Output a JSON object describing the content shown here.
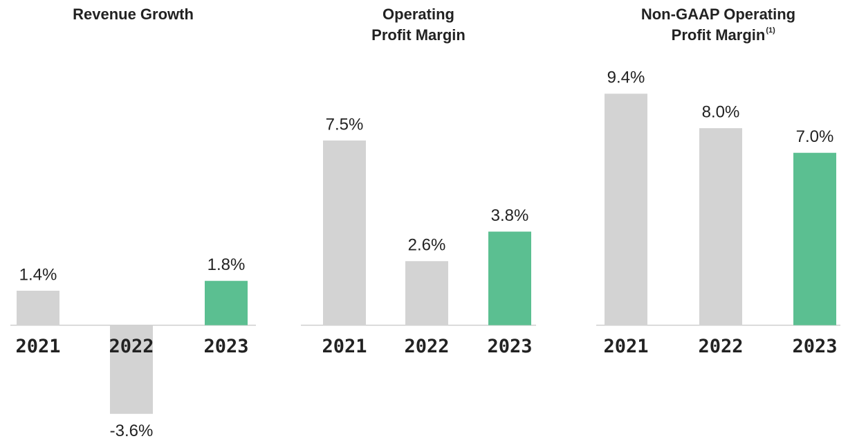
{
  "chart_data": [
    {
      "type": "bar",
      "title": [
        "Revenue Growth"
      ],
      "categories": [
        "2021",
        "2022",
        "2023"
      ],
      "values": [
        1.4,
        -3.6,
        1.8
      ],
      "value_labels": [
        "1.4%",
        "-3.6%",
        "1.8%"
      ],
      "colors": [
        "#d3d3d3",
        "#d3d3d3",
        "#5bbf91"
      ],
      "ylim": [
        -4,
        10
      ]
    },
    {
      "type": "bar",
      "title": [
        "Operating",
        "Profit Margin"
      ],
      "categories": [
        "2021",
        "2022",
        "2023"
      ],
      "values": [
        7.5,
        2.6,
        3.8
      ],
      "value_labels": [
        "7.5%",
        "2.6%",
        "3.8%"
      ],
      "colors": [
        "#d3d3d3",
        "#d3d3d3",
        "#5bbf91"
      ],
      "ylim": [
        -4,
        10
      ]
    },
    {
      "type": "bar",
      "title": [
        "Non-GAAP Operating",
        "Profit Margin"
      ],
      "title_note": "(1)",
      "categories": [
        "2021",
        "2022",
        "2023"
      ],
      "values": [
        9.4,
        8.0,
        7.0
      ],
      "value_labels": [
        "9.4%",
        "8.0%",
        "7.0%"
      ],
      "colors": [
        "#d3d3d3",
        "#d3d3d3",
        "#5bbf91"
      ],
      "ylim": [
        -4,
        10
      ]
    }
  ]
}
